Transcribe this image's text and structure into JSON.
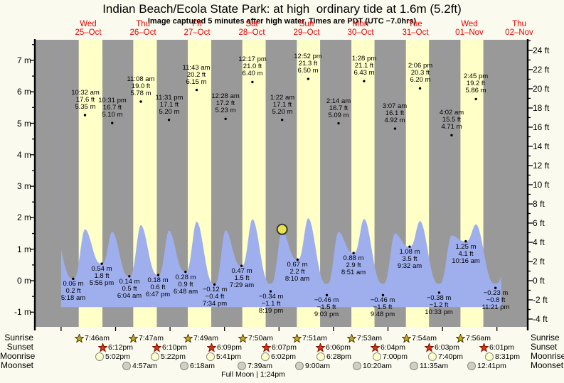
{
  "header": {
    "title": "Indian Beach/Ecola State Park: at high  ordinary tide at 1.6m (5.2ft)",
    "subtitle": "Image captured 5 minutes after high water. Times are PDT (UTC −7.0hrs)"
  },
  "days": [
    {
      "name": "Wed",
      "date": "25–Oct"
    },
    {
      "name": "Thu",
      "date": "26–Oct"
    },
    {
      "name": "Fri",
      "date": "27–Oct"
    },
    {
      "name": "Sat",
      "date": "28–Oct"
    },
    {
      "name": "Sun",
      "date": "29–Oct"
    },
    {
      "name": "Mon",
      "date": "30–Oct"
    },
    {
      "name": "Tue",
      "date": "31–Oct"
    },
    {
      "name": "Wed",
      "date": "01–Nov"
    },
    {
      "name": "Thu",
      "date": "02–Nov"
    }
  ],
  "chart_data": {
    "type": "area",
    "title": "Tide height curve with high/low tide annotations",
    "y_axis_left": {
      "unit": "m",
      "ticks": [
        7,
        6,
        5,
        4,
        3,
        2,
        1,
        0,
        -1
      ]
    },
    "y_axis_right": {
      "unit": "ft",
      "ticks": [
        24,
        22,
        20,
        18,
        16,
        14,
        12,
        10,
        8,
        6,
        4,
        2,
        0,
        -2,
        -4
      ]
    },
    "high_tides": [
      {
        "day": 0,
        "time": "10:32 am",
        "ft": "17.6 ft",
        "m": "5.35 m"
      },
      {
        "day": 0,
        "time": "10:31 pm",
        "ft": "16.7 ft",
        "m": "5.10 m"
      },
      {
        "day": 1,
        "time": "11:08 am",
        "ft": "19.0 ft",
        "m": "5.78 m"
      },
      {
        "day": 1,
        "time": "11:31 pm",
        "ft": "17.1 ft",
        "m": "5.20 m"
      },
      {
        "day": 2,
        "time": "11:43 am",
        "ft": "20.2 ft",
        "m": "6.15 m"
      },
      {
        "day": 3,
        "time": "12:28 am",
        "ft": "17.2 ft",
        "m": "5.23 m"
      },
      {
        "day": 3,
        "time": "12:17 pm",
        "ft": "21.0 ft",
        "m": "6.40 m"
      },
      {
        "day": 4,
        "time": "1:22 am",
        "ft": "17.1 ft",
        "m": "5.20 m"
      },
      {
        "day": 4,
        "time": "12:52 pm",
        "ft": "21.3 ft",
        "m": "6.50 m"
      },
      {
        "day": 5,
        "time": "2:14 am",
        "ft": "16.7 ft",
        "m": "5.09 m"
      },
      {
        "day": 5,
        "time": "1:28 pm",
        "ft": "21.1 ft",
        "m": "6.43 m"
      },
      {
        "day": 6,
        "time": "3:07 am",
        "ft": "16.1 ft",
        "m": "4.92 m"
      },
      {
        "day": 6,
        "time": "2:06 pm",
        "ft": "20.3 ft",
        "m": "6.20 m"
      },
      {
        "day": 7,
        "time": "4:02 am",
        "ft": "15.5 ft",
        "m": "4.71 m"
      },
      {
        "day": 7,
        "time": "2:45 pm",
        "ft": "19.2 ft",
        "m": "5.86 m"
      }
    ],
    "low_tides": [
      {
        "day": 0,
        "m": "0.06 m",
        "ft": "0.2 ft",
        "time": "5:18 am"
      },
      {
        "day": 0,
        "m": "0.54 m",
        "ft": "1.8 ft",
        "time": "5:56 pm"
      },
      {
        "day": 1,
        "m": "0.14 m",
        "ft": "0.5 ft",
        "time": "6:04 am"
      },
      {
        "day": 1,
        "m": "0.18 m",
        "ft": "0.6 ft",
        "time": "6:47 pm"
      },
      {
        "day": 2,
        "m": "0.28 m",
        "ft": "0.9 ft",
        "time": "6:48 am"
      },
      {
        "day": 2,
        "m": "−0.12 m",
        "ft": "−0.4 ft",
        "time": "7:34 pm"
      },
      {
        "day": 3,
        "m": "0.47 m",
        "ft": "1.5 ft",
        "time": "7:29 am"
      },
      {
        "day": 3,
        "m": "−0.34 m",
        "ft": "−1.1 ft",
        "time": "8:19 pm"
      },
      {
        "day": 4,
        "m": "0.67 m",
        "ft": "2.2 ft",
        "time": "8:10 am"
      },
      {
        "day": 4,
        "m": "−0.46 m",
        "ft": "−1.5 ft",
        "time": "9:03 pm"
      },
      {
        "day": 5,
        "m": "0.88 m",
        "ft": "2.9 ft",
        "time": "8:51 am"
      },
      {
        "day": 5,
        "m": "−0.46 m",
        "ft": "−1.5 ft",
        "time": "9:48 pm"
      },
      {
        "day": 6,
        "m": "1.08 m",
        "ft": "3.5 ft",
        "time": "9:32 am"
      },
      {
        "day": 6,
        "m": "−0.38 m",
        "ft": "−1.2 ft",
        "time": "10:33 pm"
      },
      {
        "day": 7,
        "m": "1.25 m",
        "ft": "4.1 ft",
        "time": "10:16 am"
      },
      {
        "day": 7,
        "m": "−0.23 m",
        "ft": "−0.8 ft",
        "time": "11:21 pm"
      }
    ],
    "marker": {
      "high_index": 7,
      "display_height_m": 1.63
    },
    "curve": {
      "peak_display_scale": 0.305,
      "trough_floor_m": -0.1,
      "fill_bottom_m": -0.84
    }
  },
  "astro": {
    "row_labels": [
      "Sunrise",
      "Sunset",
      "Moonrise",
      "Moonset"
    ],
    "sunrise": [
      "7:46am",
      "7:47am",
      "7:49am",
      "7:50am",
      "7:51am",
      "7:53am",
      "7:54am",
      "7:56am"
    ],
    "sunset": [
      "6:12pm",
      "6:10pm",
      "6:09pm",
      "6:07pm",
      "6:06pm",
      "6:04pm",
      "6:03pm",
      "6:01pm"
    ],
    "moonrise": [
      "5:02pm",
      "5:22pm",
      "5:41pm",
      "6:02pm",
      "6:28pm",
      "7:00pm",
      "7:40pm",
      "8:31pm"
    ],
    "moonset": [
      "4:57am",
      "6:18am",
      "7:39am",
      "9:00am",
      "10:20am",
      "11:35am",
      "12:41pm"
    ],
    "moonset_start_day": 1,
    "full_moon": "Full Moon | 1:24pm"
  },
  "colors": {
    "page_bg": "#fbfaee",
    "night_band": "#999999",
    "daylight_band": "#ffffc8",
    "tide_fill": "#9fafee",
    "marker_fill": "#e8e44a",
    "marker_stroke": "#3a3a3a",
    "day_label": "#f00000",
    "sunrise_star": "#c9a82a",
    "sunset_star": "#e03010",
    "moonrise_fill": "#ffffcc",
    "moonset_fill": "#cfcfc2",
    "axis": "#000000"
  }
}
